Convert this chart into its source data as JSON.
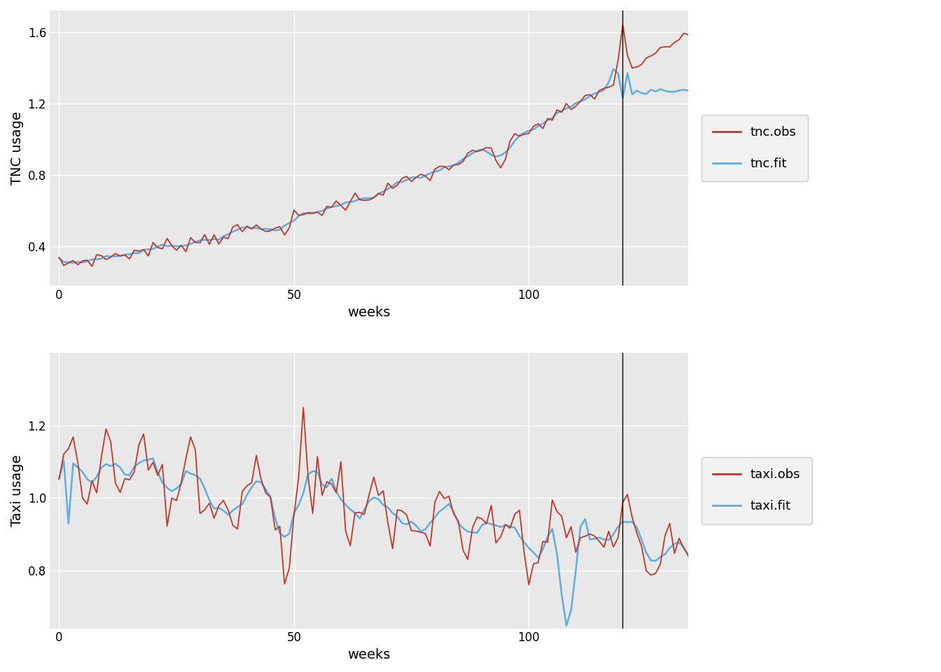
{
  "n_weeks": 135,
  "vline_x": 120,
  "obs_color": "#C0392B",
  "fit_color": "#5DADE2",
  "bg_color": "#E8E8E8",
  "grid_color": "#FFFFFF",
  "panel1_ylabel": "TNC usage",
  "panel2_ylabel": "Taxi usage",
  "xlabel": "weeks",
  "legend1_labels": [
    "tnc.obs",
    "tnc.fit"
  ],
  "legend2_labels": [
    "taxi.obs",
    "taxi.fit"
  ],
  "tnc_ylim": [
    0.18,
    1.72
  ],
  "taxi_ylim": [
    0.64,
    1.4
  ],
  "tnc_yticks": [
    0.4,
    0.8,
    1.2,
    1.6
  ],
  "taxi_yticks": [
    0.8,
    1.0,
    1.2
  ],
  "xticks": [
    0,
    50,
    100
  ],
  "figsize": [
    13.44,
    9.6
  ],
  "dpi": 100,
  "obs_lw": 1.3,
  "fit_lw": 1.8,
  "legend_fontsize": 13,
  "axis_label_fontsize": 14,
  "tick_fontsize": 12
}
